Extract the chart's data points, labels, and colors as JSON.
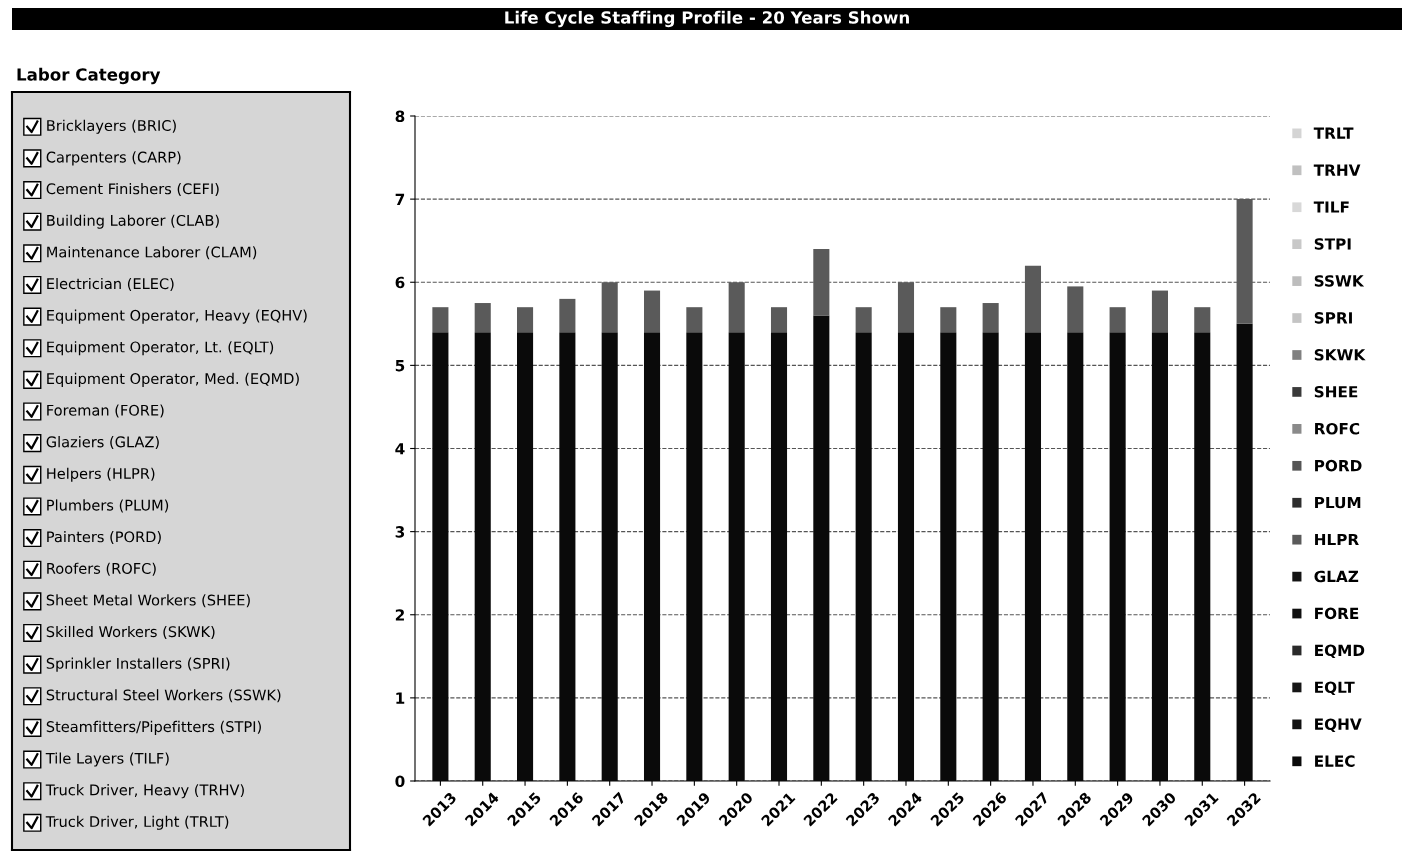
{
  "chart_data": [
    {
      "type": "other",
      "title": "Labor Category",
      "annotations": [
        "Bricklayers (BRIC)",
        "Carpenters (CARP)",
        "Cement Finishers (CEFI)",
        "Building Laborer (CLAB)",
        "Maintenance Laborer (CLAM)",
        "Electrician (ELEC)",
        "Equipment Operator, Heavy (EQHV)",
        "Equipment Operator, Lt. (EQLT)",
        "Equipment Operator, Med. (EQMD)",
        "Foreman (FORE)",
        "Glaziers (GLAZ)",
        "Helpers (HLPR)",
        "Plumbers (PLUM)",
        "Painters (PORD)",
        "Roofers (ROFC)",
        "Sheet Metal Workers (SHEE)",
        "Skilled Workers (SKWK)",
        "Sprinkler Installers (SPRI)",
        "Structural Steel Workers (SSWK)",
        "Steamfitters/Pipefitters (STPI)",
        "Tile Layers (TILF)",
        "Truck Driver, Heavy (TRHV)",
        "Truck Driver, Light (TRLT)"
      ]
    },
    {
      "type": "bar",
      "title": "Life Cycle Staffing Profile - 20 Years Shown",
      "stacked": true,
      "categories": [
        "2013",
        "2014",
        "2015",
        "2016",
        "2017",
        "2018",
        "2019",
        "2020",
        "2021",
        "2022",
        "2023",
        "2024",
        "2025",
        "2026",
        "2027",
        "2028",
        "2029",
        "2030",
        "2031",
        "2032"
      ],
      "ylim": [
        0,
        8
      ],
      "yticks": [
        0,
        1,
        2,
        3,
        4,
        5,
        6,
        7,
        8
      ],
      "grid": "y",
      "legend": "right",
      "series": [
        {
          "name": "ELEC",
          "color": "#0a0a0a",
          "values": [
            5.4,
            5.4,
            5.4,
            5.4,
            5.4,
            5.4,
            5.4,
            5.4,
            5.4,
            5.6,
            5.4,
            5.4,
            5.4,
            5.4,
            5.4,
            5.4,
            5.4,
            5.4,
            5.4,
            5.5
          ]
        },
        {
          "name": "EQHV",
          "color": "#111111",
          "values": [
            null,
            null,
            null,
            null,
            null,
            null,
            null,
            null,
            null,
            null,
            null,
            null,
            null,
            null,
            null,
            null,
            null,
            null,
            null,
            null
          ]
        },
        {
          "name": "EQLT",
          "color": "#161616",
          "values": [
            null,
            null,
            null,
            null,
            null,
            null,
            null,
            null,
            null,
            null,
            null,
            null,
            null,
            null,
            null,
            null,
            null,
            null,
            null,
            null
          ]
        },
        {
          "name": "EQMD",
          "color": "#2a2a2a",
          "values": [
            null,
            null,
            null,
            null,
            null,
            null,
            null,
            null,
            null,
            null,
            null,
            null,
            null,
            null,
            null,
            null,
            null,
            null,
            null,
            null
          ]
        },
        {
          "name": "FORE",
          "color": "#101010",
          "values": [
            null,
            null,
            null,
            null,
            null,
            null,
            null,
            null,
            null,
            null,
            null,
            null,
            null,
            null,
            null,
            null,
            null,
            null,
            null,
            null
          ]
        },
        {
          "name": "GLAZ",
          "color": "#141414",
          "values": [
            null,
            null,
            null,
            null,
            null,
            null,
            null,
            null,
            null,
            null,
            null,
            null,
            null,
            null,
            null,
            null,
            null,
            null,
            null,
            null
          ]
        },
        {
          "name": "HLPR",
          "color": "#5a5a5a",
          "values": [
            0.3,
            0.35,
            0.3,
            0.4,
            0.6,
            0.5,
            0.3,
            0.6,
            0.3,
            0.8,
            0.3,
            0.6,
            0.3,
            0.35,
            0.8,
            0.55,
            0.3,
            0.5,
            0.3,
            1.5
          ]
        },
        {
          "name": "PLUM",
          "color": "#2e2e2e",
          "values": [
            null,
            null,
            null,
            null,
            null,
            null,
            null,
            null,
            null,
            null,
            null,
            null,
            null,
            null,
            null,
            null,
            null,
            null,
            null,
            null
          ]
        },
        {
          "name": "PORD",
          "color": "#555555",
          "values": [
            null,
            null,
            null,
            null,
            null,
            null,
            null,
            null,
            null,
            null,
            null,
            null,
            null,
            null,
            null,
            null,
            null,
            null,
            null,
            null
          ]
        },
        {
          "name": "ROFC",
          "color": "#8a8a8a",
          "values": [
            null,
            null,
            null,
            null,
            null,
            null,
            null,
            null,
            null,
            null,
            null,
            null,
            null,
            null,
            null,
            null,
            null,
            null,
            null,
            null
          ]
        },
        {
          "name": "SHEE",
          "color": "#3a3a3a",
          "values": [
            null,
            null,
            null,
            null,
            null,
            null,
            null,
            null,
            null,
            null,
            null,
            null,
            null,
            null,
            null,
            null,
            null,
            null,
            null,
            null
          ]
        },
        {
          "name": "SKWK",
          "color": "#808080",
          "values": [
            null,
            null,
            null,
            null,
            null,
            null,
            null,
            null,
            null,
            null,
            null,
            null,
            null,
            null,
            null,
            null,
            null,
            null,
            null,
            null
          ]
        },
        {
          "name": "SPRI",
          "color": "#c4c4c4",
          "values": [
            null,
            null,
            null,
            null,
            null,
            null,
            null,
            null,
            null,
            null,
            null,
            null,
            null,
            null,
            null,
            null,
            null,
            null,
            null,
            null
          ]
        },
        {
          "name": "SSWK",
          "color": "#bdbdbd",
          "values": [
            null,
            null,
            null,
            null,
            null,
            null,
            null,
            null,
            null,
            null,
            null,
            null,
            null,
            null,
            null,
            null,
            null,
            null,
            null,
            null
          ]
        },
        {
          "name": "STPI",
          "color": "#c8c8c8",
          "values": [
            null,
            null,
            null,
            null,
            null,
            null,
            null,
            null,
            null,
            null,
            null,
            null,
            null,
            null,
            null,
            null,
            null,
            null,
            null,
            null
          ]
        },
        {
          "name": "TILF",
          "color": "#d8d8d8",
          "values": [
            null,
            null,
            null,
            null,
            null,
            null,
            null,
            null,
            null,
            null,
            null,
            null,
            null,
            null,
            null,
            null,
            null,
            null,
            null,
            null
          ]
        },
        {
          "name": "TRHV",
          "color": "#c0c0c0",
          "values": [
            null,
            null,
            null,
            null,
            null,
            null,
            null,
            null,
            null,
            null,
            null,
            null,
            null,
            null,
            null,
            null,
            null,
            null,
            null,
            null
          ]
        },
        {
          "name": "TRLT",
          "color": "#d4d4d4",
          "values": [
            null,
            null,
            null,
            null,
            null,
            null,
            null,
            null,
            null,
            null,
            null,
            null,
            null,
            null,
            null,
            null,
            null,
            null,
            null,
            null
          ]
        }
      ]
    }
  ]
}
